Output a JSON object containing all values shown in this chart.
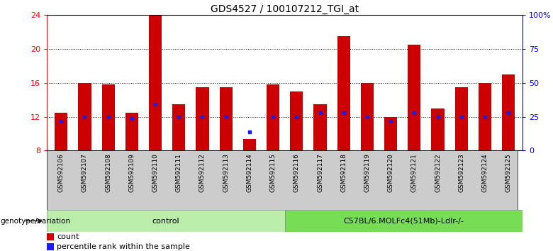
{
  "title": "GDS4527 / 100107212_TGI_at",
  "samples": [
    "GSM592106",
    "GSM592107",
    "GSM592108",
    "GSM592109",
    "GSM592110",
    "GSM592111",
    "GSM592112",
    "GSM592113",
    "GSM592114",
    "GSM592115",
    "GSM592116",
    "GSM592117",
    "GSM592118",
    "GSM592119",
    "GSM592120",
    "GSM592121",
    "GSM592122",
    "GSM592123",
    "GSM592124",
    "GSM592125"
  ],
  "bar_heights": [
    12.5,
    16.0,
    15.8,
    12.5,
    23.9,
    13.5,
    15.5,
    15.5,
    9.4,
    15.8,
    15.0,
    13.5,
    21.5,
    16.0,
    12.0,
    20.5,
    13.0,
    15.5,
    16.0,
    17.0
  ],
  "blue_vals": [
    11.5,
    12.0,
    12.0,
    11.8,
    13.5,
    12.0,
    12.0,
    12.0,
    10.2,
    12.0,
    12.0,
    12.5,
    12.5,
    12.0,
    11.5,
    12.5,
    12.0,
    12.0,
    12.0,
    12.5
  ],
  "bar_color": "#cc0000",
  "blue_color": "#1a1aff",
  "ymin": 8,
  "ymax": 24,
  "yticks_left": [
    8,
    12,
    16,
    20,
    24
  ],
  "yticks_right": [
    0,
    25,
    50,
    75,
    100
  ],
  "ytick_labels_right": [
    "0",
    "25",
    "50",
    "75",
    "100%"
  ],
  "grid_lines": [
    12,
    16,
    20
  ],
  "control_count": 10,
  "group1_label": "control",
  "group2_label": "C57BL/6.MOLFc4(51Mb)-Ldlr-/-",
  "group1_color": "#bbeeaa",
  "group2_color": "#77dd55",
  "genotype_label": "genotype/variation",
  "legend_count_label": "count",
  "legend_pct_label": "percentile rank within the sample",
  "tick_bg_color": "#cccccc",
  "title_fontsize": 10,
  "bar_width": 0.55
}
